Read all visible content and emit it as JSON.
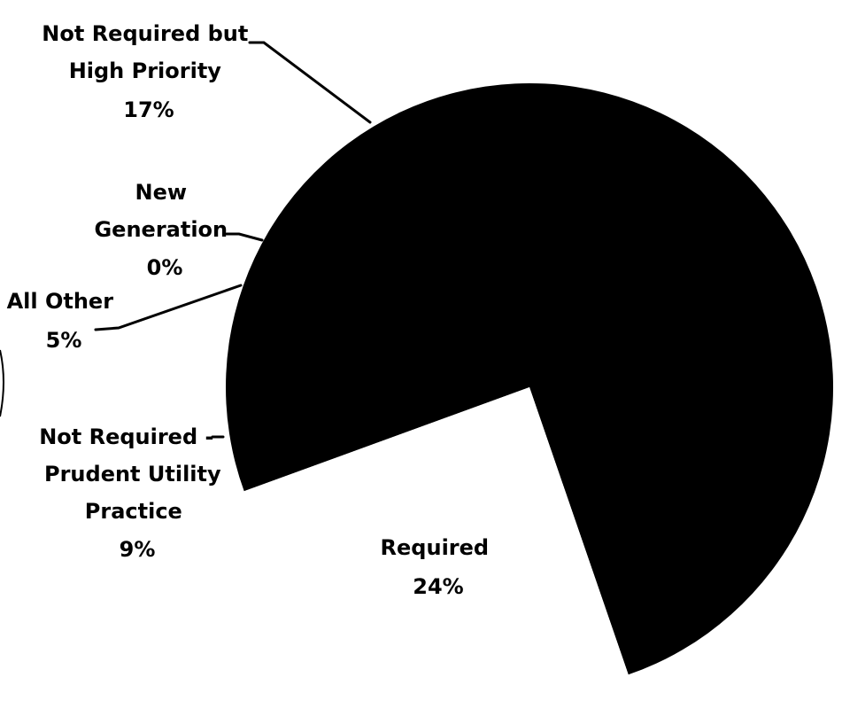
{
  "chart_data": {
    "type": "pie",
    "title": "",
    "slices": [
      {
        "label_lines": [
          "Not Required but",
          "High Priority"
        ],
        "value_text": "17%",
        "value": 17,
        "color": "#000000"
      },
      {
        "label_lines": [
          "New",
          "Generation"
        ],
        "value_text": "0%",
        "value": 0,
        "color": "#000000"
      },
      {
        "label_lines": [
          "All Other"
        ],
        "value_text": "5%",
        "value": 5,
        "color": "#000000"
      },
      {
        "label_lines": [
          "Not Required -",
          "Prudent Utility",
          "Practice"
        ],
        "value_text": "9%",
        "value": 9,
        "color": "#000000"
      },
      {
        "label_lines": [
          "Required"
        ],
        "value_text": "24%",
        "value": 24,
        "color": "#ffffff"
      }
    ],
    "legend": "none",
    "grid": false
  }
}
